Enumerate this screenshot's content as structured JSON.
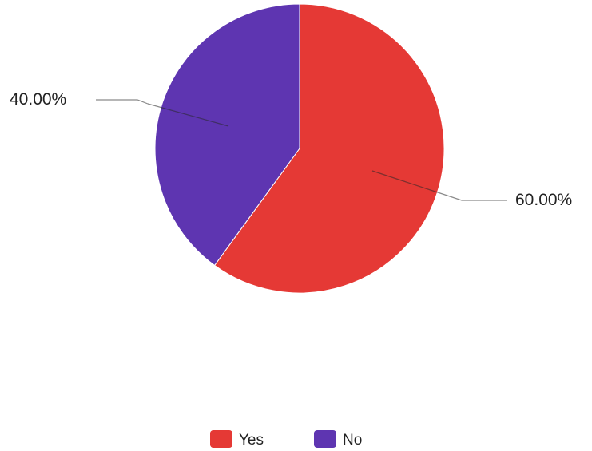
{
  "chart_data": {
    "type": "pie",
    "title": "",
    "legend_position": "bottom",
    "slices": [
      {
        "label": "Yes",
        "value": 60.0,
        "display": "60.00%",
        "color": "#e53935"
      },
      {
        "label": "No",
        "value": 40.0,
        "display": "40.00%",
        "color": "#5e35b1"
      }
    ]
  }
}
